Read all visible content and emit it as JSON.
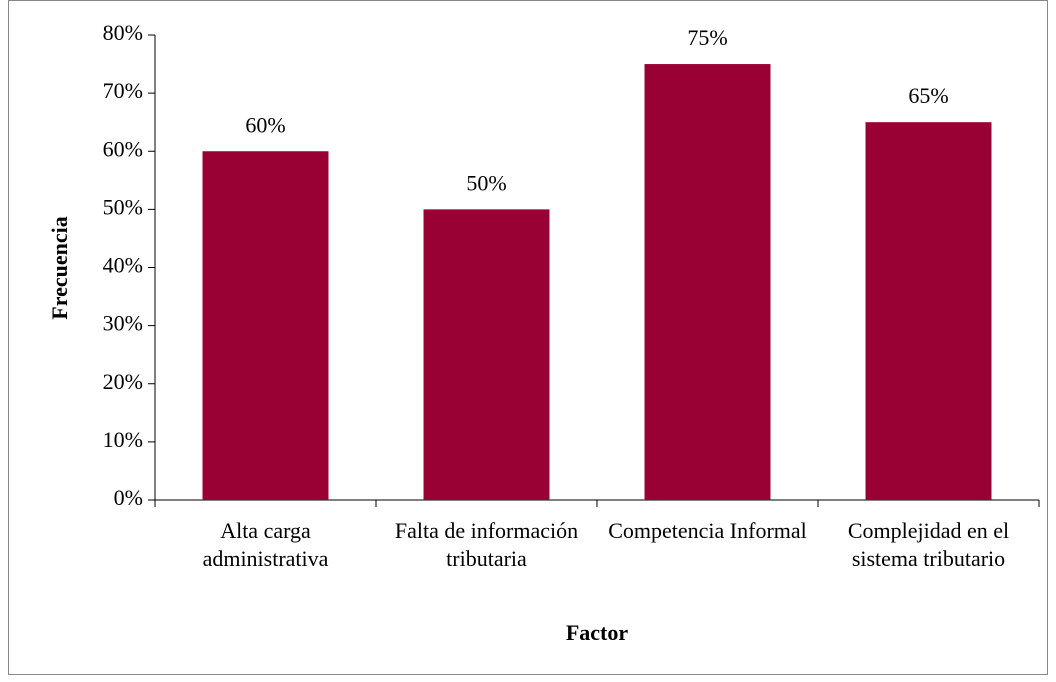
{
  "chart_data": {
    "type": "bar",
    "x_label": "Factor",
    "y_label": "Frecuencia",
    "categories": [
      "Alta carga administrativa",
      "Falta de información tributaria",
      "Competencia Informal",
      "Complejidad en el sistema tributario"
    ],
    "values": [
      60,
      50,
      75,
      65
    ],
    "value_labels": [
      "60%",
      "50%",
      "75%",
      "65%"
    ],
    "color": "#990033",
    "ylim": [
      0,
      80
    ],
    "yticks": [
      {
        "value": 0,
        "label": "0%"
      },
      {
        "value": 10,
        "label": "10%"
      },
      {
        "value": 20,
        "label": "20%"
      },
      {
        "value": 30,
        "label": "30%"
      },
      {
        "value": 40,
        "label": "40%"
      },
      {
        "value": 50,
        "label": "50%"
      },
      {
        "value": 60,
        "label": "60%"
      },
      {
        "value": 70,
        "label": "70%"
      },
      {
        "value": 80,
        "label": "80%"
      }
    ],
    "grid": false
  }
}
